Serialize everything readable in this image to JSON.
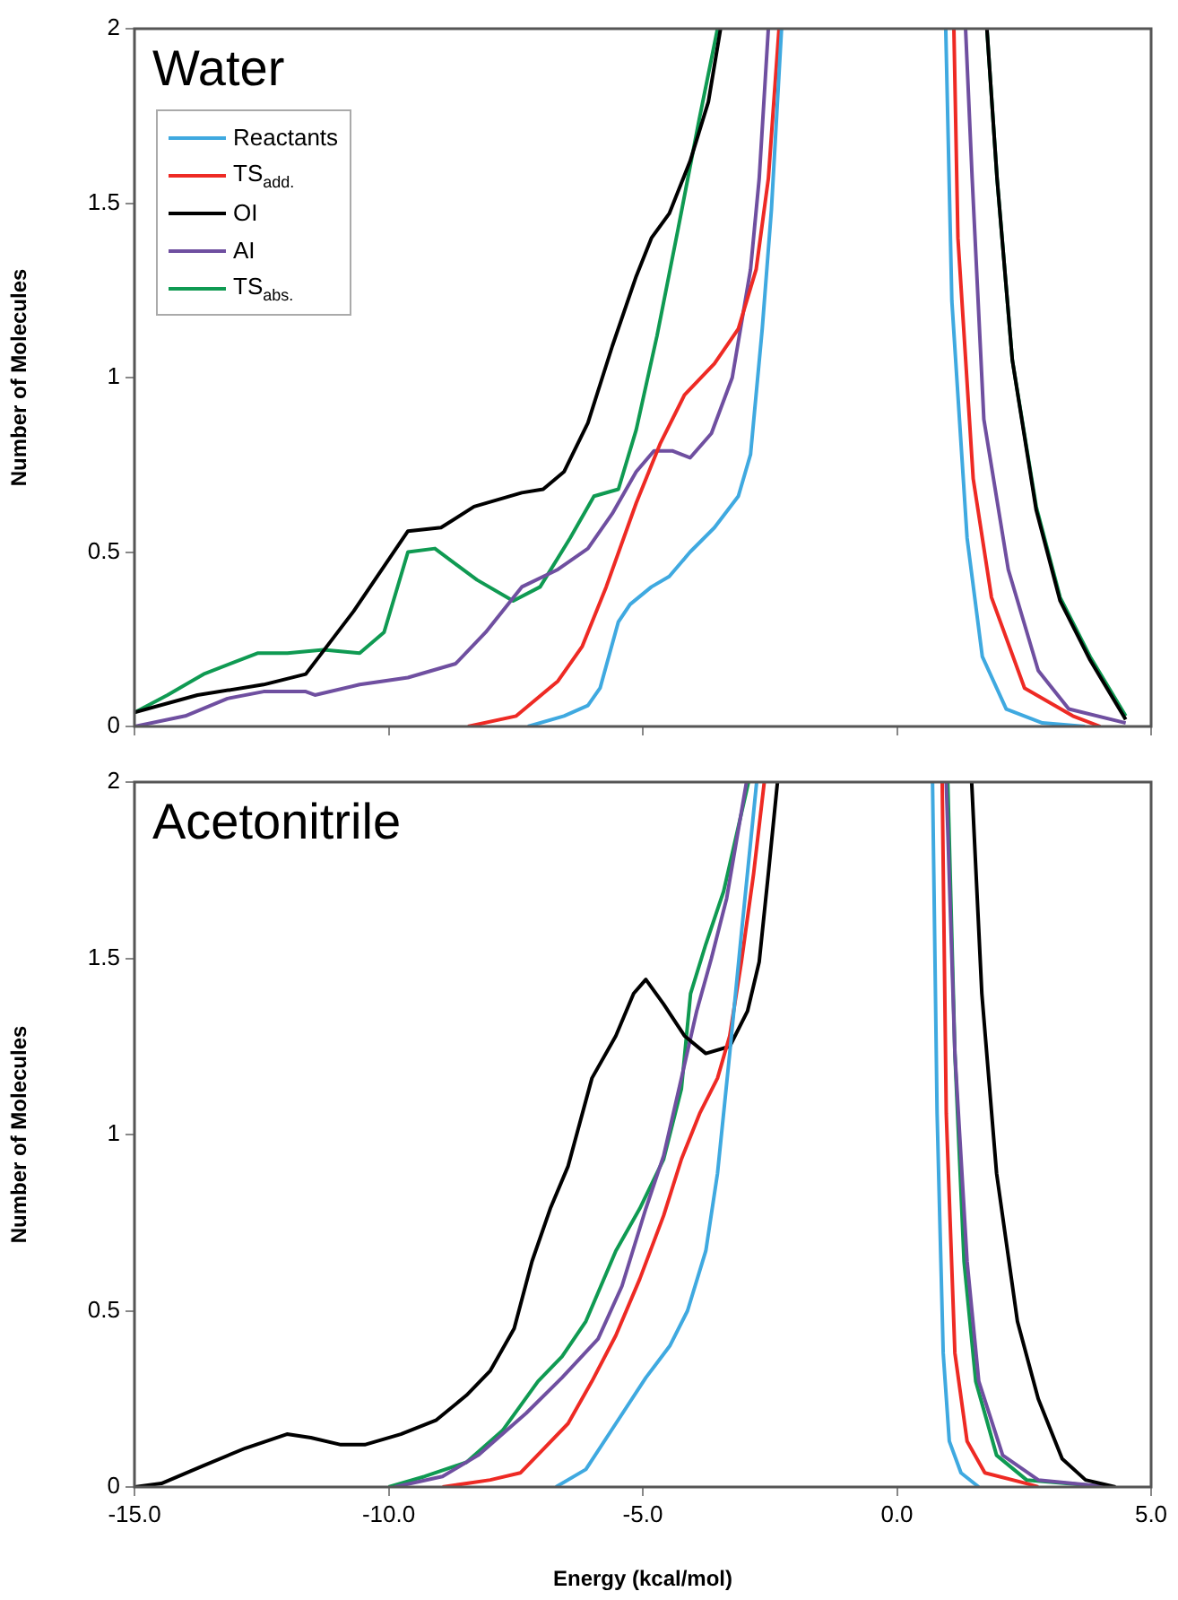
{
  "chart_data": [
    {
      "type": "line",
      "title": "Water",
      "ylabel": "Number of Molecules",
      "legend": "top left",
      "tick_labels": "y",
      "xlim": [
        -15,
        5
      ],
      "ylim": [
        0,
        2
      ],
      "xticks": [
        {
          "value": -15,
          "label": null
        },
        {
          "value": -10,
          "label": null
        },
        {
          "value": -5,
          "label": null
        },
        {
          "value": 0,
          "label": null
        },
        {
          "value": 5,
          "label": null
        }
      ],
      "yticks": [
        0,
        0.5,
        1,
        1.5,
        2
      ],
      "series": [
        {
          "name": "Reactants",
          "color": "#3fa9e0",
          "x": [
            -7.26,
            -6.55,
            -6.08,
            -5.84,
            -5.48,
            -5.25,
            -4.83,
            -4.48,
            -4.07,
            -3.59,
            -3.12,
            -2.88,
            -2.65,
            -2.47,
            -2.27,
            -1,
            0.96,
            1.08,
            1.38,
            1.68,
            2.15,
            2.86,
            3.7
          ],
          "values": [
            0,
            0.03,
            0.06,
            0.11,
            0.3,
            0.35,
            0.4,
            0.43,
            0.5,
            0.57,
            0.66,
            0.78,
            1.14,
            1.48,
            2,
            null,
            2,
            1.22,
            0.54,
            0.2,
            0.05,
            0.01,
            0
          ]
        },
        {
          "name": "TS$_{add.}$",
          "color": "#ee2a24",
          "x": [
            -8.44,
            -7.49,
            -6.67,
            -6.19,
            -5.72,
            -5.13,
            -4.66,
            -4.18,
            -3.59,
            -3.12,
            -2.77,
            -2.53,
            -2.32,
            -1,
            1.12,
            1.2,
            1.5,
            1.86,
            2.51,
            3.46,
            4
          ],
          "values": [
            0,
            0.03,
            0.13,
            0.23,
            0.4,
            0.64,
            0.81,
            0.95,
            1.04,
            1.14,
            1.31,
            1.57,
            2,
            null,
            2,
            1.4,
            0.71,
            0.37,
            0.11,
            0.03,
            0
          ]
        },
        {
          "name": "OI",
          "color": "#000000",
          "x": [
            -15,
            -13.76,
            -12.46,
            -11.63,
            -10.69,
            -9.62,
            -8.97,
            -8.32,
            -7.38,
            -6.96,
            -6.55,
            -6.08,
            -5.6,
            -5.13,
            -4.83,
            -4.48,
            -4.07,
            -3.71,
            -3.47,
            -1,
            1.77,
            1.97,
            2.27,
            2.74,
            3.21,
            3.8,
            4.5
          ],
          "values": [
            0.04,
            0.09,
            0.12,
            0.15,
            0.33,
            0.56,
            0.57,
            0.63,
            0.67,
            0.68,
            0.73,
            0.87,
            1.09,
            1.29,
            1.4,
            1.47,
            1.62,
            1.79,
            2,
            null,
            2,
            1.57,
            1.05,
            0.62,
            0.36,
            0.19,
            0.02
          ]
        },
        {
          "name": "AI",
          "color": "#6f4fa0",
          "x": [
            -15,
            -14,
            -13.17,
            -12.46,
            -11.63,
            -11.45,
            -10.57,
            -9.62,
            -8.68,
            -8.09,
            -7.38,
            -6.67,
            -6.08,
            -5.6,
            -5.13,
            -4.78,
            -4.42,
            -4.07,
            -3.65,
            -3.24,
            -2.88,
            -2.71,
            -2.53,
            -1,
            1.35,
            1.48,
            1.71,
            2.19,
            2.78,
            3.38,
            4.5
          ],
          "values": [
            0,
            0.03,
            0.08,
            0.1,
            0.1,
            0.09,
            0.12,
            0.14,
            0.18,
            0.27,
            0.4,
            0.45,
            0.51,
            0.61,
            0.73,
            0.79,
            0.79,
            0.77,
            0.84,
            1,
            1.31,
            1.57,
            2,
            null,
            2,
            1.57,
            0.88,
            0.45,
            0.16,
            0.05,
            0.01
          ]
        },
        {
          "name": "TS$_{abs.}$",
          "color": "#0f9a52",
          "x": [
            -15,
            -14.35,
            -13.64,
            -12.58,
            -11.99,
            -11.28,
            -10.57,
            -10.09,
            -9.62,
            -9.09,
            -8.26,
            -7.55,
            -7.02,
            -6.43,
            -5.96,
            -5.48,
            -5.13,
            -4.72,
            -4.3,
            -3.89,
            -3.53,
            -1,
            1.77,
            1.97,
            2.27,
            2.74,
            3.21,
            3.8,
            4.5
          ],
          "values": [
            0.04,
            0.09,
            0.15,
            0.21,
            0.21,
            0.22,
            0.21,
            0.27,
            0.5,
            0.51,
            0.42,
            0.36,
            0.4,
            0.54,
            0.66,
            0.68,
            0.85,
            1.12,
            1.43,
            1.74,
            2,
            null,
            2,
            1.57,
            1.05,
            0.63,
            0.37,
            0.2,
            0.03
          ]
        }
      ]
    },
    {
      "type": "line",
      "title": "Acetonitrile",
      "xlabel": "Energy (kcal/mol)",
      "ylabel": "Number of Molecules",
      "xlim": [
        -15,
        5
      ],
      "ylim": [
        0,
        2
      ],
      "xticks": [
        {
          "value": -15,
          "label": "-15.0"
        },
        {
          "value": -10,
          "label": "-10.0"
        },
        {
          "value": -5,
          "label": "-5.0"
        },
        {
          "value": 0,
          "label": "0.0"
        },
        {
          "value": 5,
          "label": "5.0"
        }
      ],
      "yticks": [
        0,
        0.5,
        1,
        1.5,
        2
      ],
      "series": [
        {
          "color": "#3fa9e0",
          "x": [
            -6.71,
            -6.12,
            -5.53,
            -4.94,
            -4.47,
            -4.12,
            -3.76,
            -3.53,
            -3.29,
            -3.06,
            -2.76,
            -1,
            0.7,
            0.79,
            0.91,
            1.03,
            1.26,
            1.61
          ],
          "values": [
            0,
            0.05,
            0.18,
            0.31,
            0.4,
            0.5,
            0.67,
            0.89,
            1.23,
            1.57,
            2,
            null,
            2,
            1.06,
            0.38,
            0.13,
            0.04,
            0
          ]
        },
        {
          "color": "#ee2a24",
          "x": [
            -8.94,
            -8,
            -7.41,
            -6.94,
            -6.47,
            -6,
            -5.53,
            -5.06,
            -4.59,
            -4.24,
            -3.88,
            -3.53,
            -3.29,
            -3.06,
            -2.82,
            -2.61,
            -1,
            0.89,
            0.97,
            1.14,
            1.38,
            1.73,
            2.55,
            2.78
          ],
          "values": [
            0,
            0.02,
            0.04,
            0.11,
            0.18,
            0.3,
            0.43,
            0.59,
            0.77,
            0.93,
            1.06,
            1.16,
            1.28,
            1.49,
            1.74,
            2,
            null,
            2,
            1.06,
            0.38,
            0.13,
            0.04,
            0.01,
            0
          ]
        },
        {
          "color": "#000000",
          "x": [
            -15,
            -14.47,
            -13.65,
            -12.82,
            -12,
            -11.53,
            -10.94,
            -10.47,
            -9.76,
            -9.06,
            -8.47,
            -8,
            -7.53,
            -7.18,
            -6.82,
            -6.47,
            -6,
            -5.53,
            -5.18,
            -4.94,
            -4.59,
            -4.18,
            -3.76,
            -3.29,
            -2.94,
            -2.71,
            -2.53,
            -2.35,
            -1,
            1.47,
            1.67,
            1.96,
            2.37,
            2.78,
            3.25,
            3.71,
            4.3
          ],
          "values": [
            0,
            0.01,
            0.06,
            0.11,
            0.15,
            0.14,
            0.12,
            0.12,
            0.15,
            0.19,
            0.26,
            0.33,
            0.45,
            0.64,
            0.79,
            0.91,
            1.16,
            1.28,
            1.4,
            1.44,
            1.37,
            1.28,
            1.23,
            1.25,
            1.35,
            1.49,
            1.74,
            2,
            null,
            2,
            1.4,
            0.89,
            0.47,
            0.25,
            0.08,
            0.02,
            0
          ]
        },
        {
          "color": "#6f4fa0",
          "x": [
            -9.88,
            -8.94,
            -8.24,
            -7.29,
            -6.59,
            -5.88,
            -5.41,
            -4.94,
            -4.59,
            -4.24,
            -3.94,
            -3.65,
            -3.35,
            -2.96,
            -1,
            0.97,
            1.14,
            1.38,
            1.61,
            2.08,
            2.78,
            4.18
          ],
          "values": [
            0,
            0.03,
            0.09,
            0.21,
            0.31,
            0.42,
            0.57,
            0.79,
            0.94,
            1.16,
            1.35,
            1.5,
            1.67,
            2,
            null,
            2,
            1.23,
            0.64,
            0.3,
            0.09,
            0.02,
            0
          ]
        },
        {
          "color": "#0f9a52",
          "x": [
            -10,
            -9.29,
            -8.47,
            -7.76,
            -7.06,
            -6.59,
            -6.12,
            -5.53,
            -5.06,
            -4.59,
            -4.24,
            -4.06,
            -3.76,
            -3.41,
            -2.92,
            -1,
            1,
            1.14,
            1.32,
            1.55,
            1.96,
            2.55,
            4.18
          ],
          "values": [
            0,
            0.03,
            0.07,
            0.16,
            0.3,
            0.37,
            0.47,
            0.67,
            0.79,
            0.93,
            1.13,
            1.4,
            1.54,
            1.69,
            2,
            null,
            2,
            1.23,
            0.64,
            0.3,
            0.09,
            0.02,
            0
          ]
        }
      ]
    }
  ]
}
